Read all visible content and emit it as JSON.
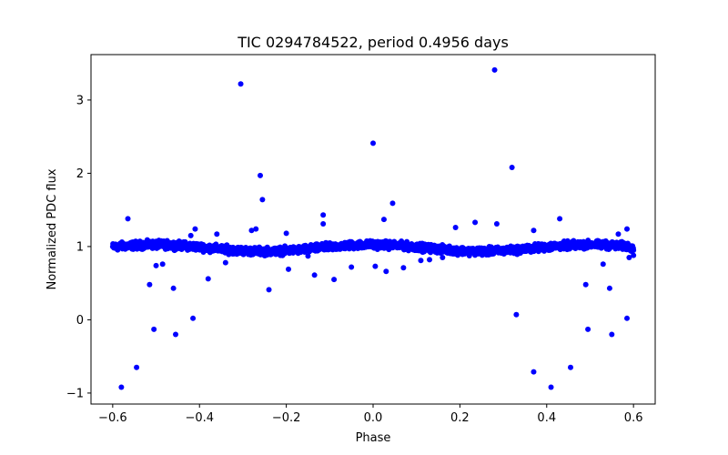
{
  "chart_data": {
    "type": "scatter",
    "title": "TIC 0294784522, period 0.4956 days",
    "xlabel": "Phase",
    "ylabel": "Normalized PDC flux",
    "xlim": [
      -0.65,
      0.65
    ],
    "ylim": [
      -1.15,
      3.62
    ],
    "xticks": [
      -0.6,
      -0.4,
      -0.2,
      0.0,
      0.2,
      0.4,
      0.6
    ],
    "xtick_labels": [
      "−0.6",
      "−0.4",
      "−0.2",
      "0.0",
      "0.2",
      "0.4",
      "0.6"
    ],
    "yticks": [
      -1,
      0,
      1,
      2,
      3
    ],
    "ytick_labels": [
      "−1",
      "0",
      "1",
      "2",
      "3"
    ],
    "grid": false,
    "marker_color": "#0000ff",
    "series": [
      {
        "name": "flux",
        "baseline_phase_range": [
          -0.6,
          0.6
        ],
        "baseline_level": 1.0,
        "outliers": [
          [
            -0.58,
            -0.92
          ],
          [
            -0.565,
            1.38
          ],
          [
            -0.545,
            -0.65
          ],
          [
            -0.515,
            0.48
          ],
          [
            -0.505,
            -0.13
          ],
          [
            -0.5,
            0.74
          ],
          [
            -0.485,
            0.76
          ],
          [
            -0.46,
            0.43
          ],
          [
            -0.455,
            -0.2
          ],
          [
            -0.42,
            1.15
          ],
          [
            -0.415,
            0.02
          ],
          [
            -0.41,
            1.24
          ],
          [
            -0.38,
            0.56
          ],
          [
            -0.36,
            1.17
          ],
          [
            -0.34,
            0.78
          ],
          [
            -0.305,
            3.22
          ],
          [
            -0.28,
            1.22
          ],
          [
            -0.27,
            1.24
          ],
          [
            -0.26,
            1.97
          ],
          [
            -0.255,
            1.64
          ],
          [
            -0.24,
            0.41
          ],
          [
            -0.2,
            1.18
          ],
          [
            -0.195,
            0.69
          ],
          [
            -0.15,
            0.87
          ],
          [
            -0.135,
            0.61
          ],
          [
            -0.115,
            1.43
          ],
          [
            -0.115,
            1.31
          ],
          [
            -0.09,
            0.55
          ],
          [
            -0.05,
            0.72
          ],
          [
            0.0,
            2.41
          ],
          [
            0.005,
            0.73
          ],
          [
            0.025,
            1.37
          ],
          [
            0.03,
            0.66
          ],
          [
            0.045,
            1.59
          ],
          [
            0.07,
            0.71
          ],
          [
            0.11,
            0.81
          ],
          [
            0.13,
            0.82
          ],
          [
            0.16,
            0.85
          ],
          [
            0.19,
            1.26
          ],
          [
            0.235,
            1.33
          ],
          [
            0.28,
            3.41
          ],
          [
            0.285,
            1.31
          ],
          [
            0.32,
            2.08
          ],
          [
            0.33,
            0.07
          ],
          [
            0.37,
            -0.71
          ],
          [
            0.37,
            1.22
          ],
          [
            0.41,
            -0.92
          ],
          [
            0.43,
            1.38
          ],
          [
            0.455,
            -0.65
          ],
          [
            0.49,
            0.48
          ],
          [
            0.495,
            -0.13
          ],
          [
            0.53,
            0.76
          ],
          [
            0.545,
            0.43
          ],
          [
            0.55,
            -0.2
          ],
          [
            0.585,
            0.02
          ],
          [
            0.585,
            1.24
          ],
          [
            0.565,
            1.17
          ],
          [
            0.59,
            0.85
          ],
          [
            0.6,
            0.88
          ]
        ]
      }
    ]
  }
}
